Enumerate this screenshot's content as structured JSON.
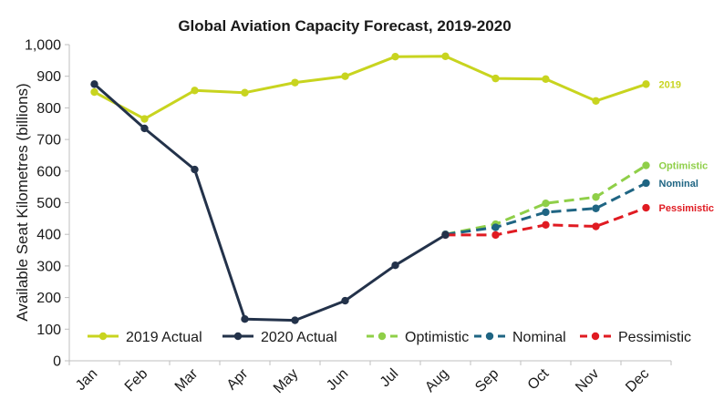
{
  "chart_data": {
    "type": "line",
    "title": "Global Aviation Capacity Forecast, 2019-2020",
    "xlabel": "",
    "ylabel": "Available Seat Kilometres (billions)",
    "ylim": [
      0,
      1000
    ],
    "yticks": [
      0,
      100,
      200,
      300,
      400,
      500,
      600,
      700,
      800,
      900,
      1000
    ],
    "ytick_labels": [
      "0",
      "100",
      "200",
      "300",
      "400",
      "500",
      "600",
      "700",
      "800",
      "900",
      "1,000"
    ],
    "categories": [
      "Jan",
      "Feb",
      "Mar",
      "Apr",
      "May",
      "Jun",
      "Jul",
      "Aug",
      "Sep",
      "Oct",
      "Nov",
      "Dec"
    ],
    "grid": false,
    "legend_position": "bottom-inside",
    "series": [
      {
        "name": "2019 Actual",
        "color": "#c8d41f",
        "dashed": false,
        "end_label": "2019",
        "values": [
          850,
          765,
          855,
          848,
          880,
          900,
          962,
          963,
          893,
          891,
          822,
          875
        ]
      },
      {
        "name": "2020 Actual",
        "color": "#23324a",
        "dashed": false,
        "end_label": "",
        "values": [
          875,
          735,
          605,
          132,
          128,
          190,
          302,
          398,
          null,
          null,
          null,
          null
        ]
      },
      {
        "name": "Optimistic",
        "color": "#8fcf48",
        "dashed": true,
        "end_label": "Optimistic",
        "values": [
          null,
          null,
          null,
          null,
          null,
          null,
          null,
          400,
          432,
          498,
          518,
          618
        ]
      },
      {
        "name": "Nominal",
        "color": "#1f6583",
        "dashed": true,
        "end_label": "Nominal",
        "values": [
          null,
          null,
          null,
          null,
          null,
          null,
          null,
          400,
          422,
          470,
          482,
          562
        ]
      },
      {
        "name": "Pessimistic",
        "color": "#e01b22",
        "dashed": true,
        "end_label": "Pessimistic",
        "values": [
          null,
          null,
          null,
          null,
          null,
          null,
          null,
          398,
          398,
          430,
          425,
          484
        ]
      }
    ]
  }
}
